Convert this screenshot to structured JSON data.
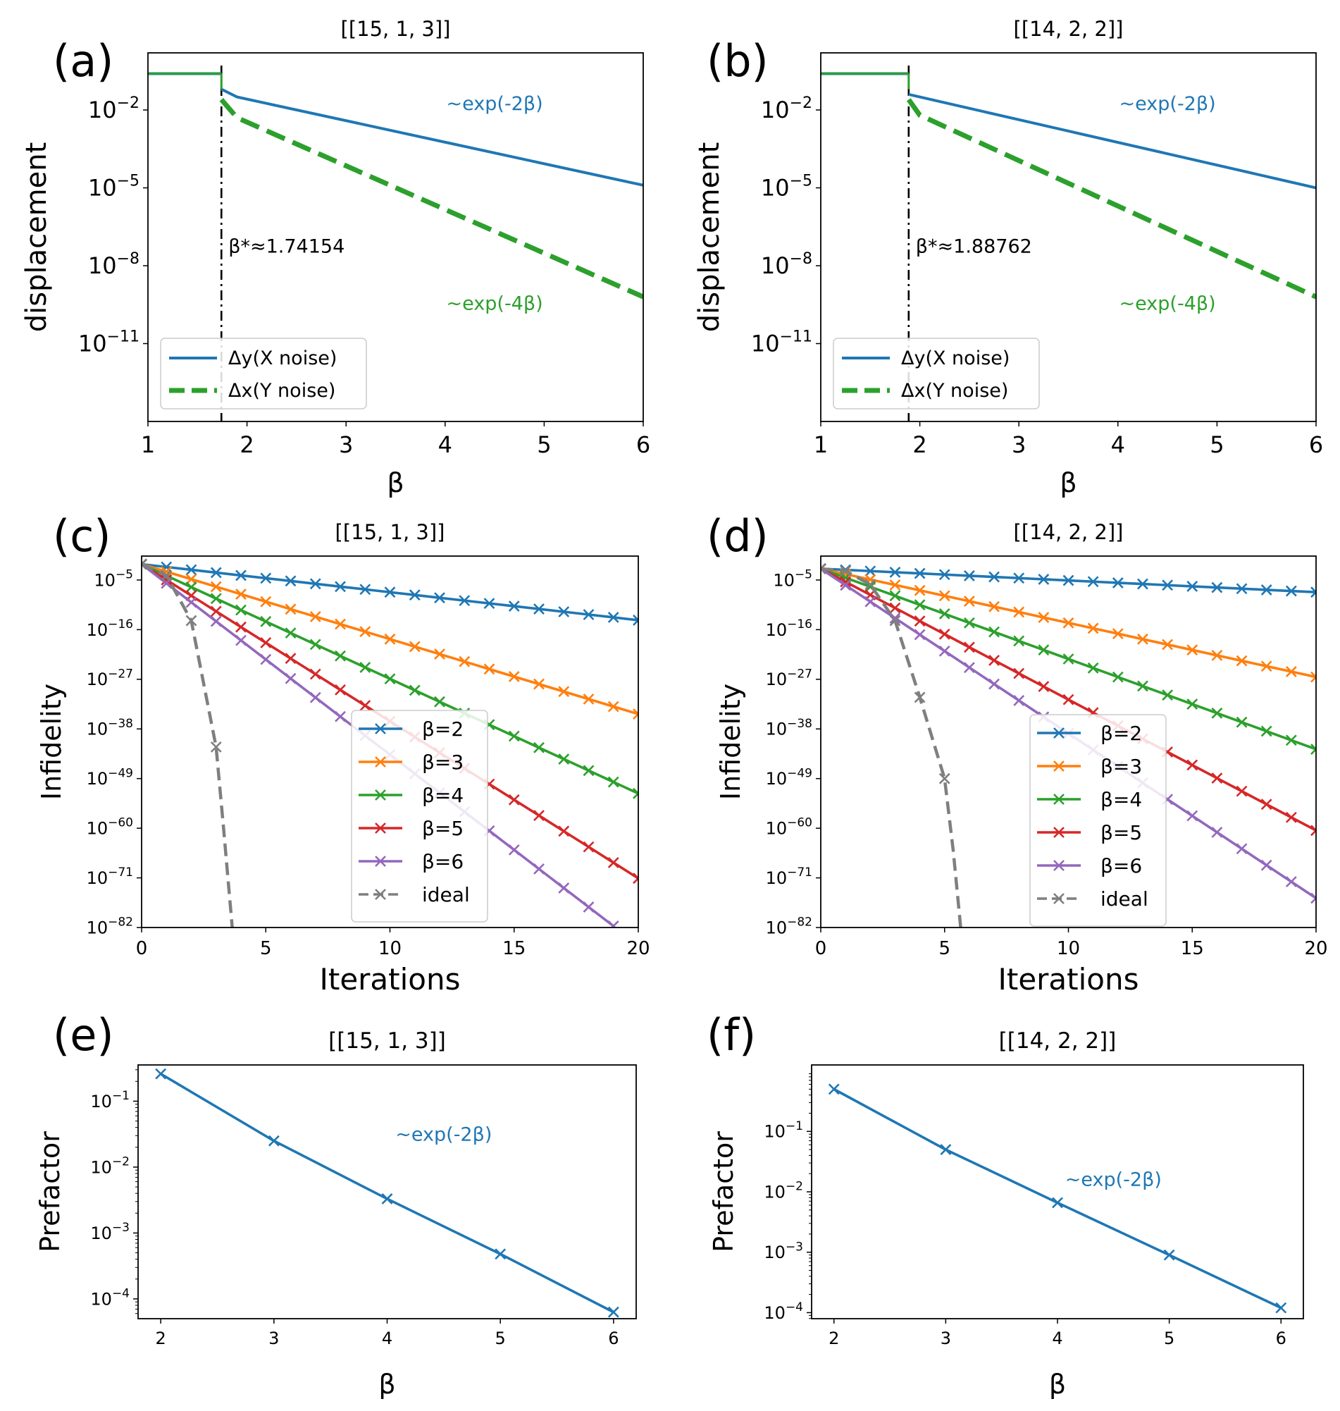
{
  "colors": {
    "beta2": "#1f77b4",
    "beta3": "#ff7f0e",
    "beta4": "#2ca02c",
    "beta5": "#d62728",
    "beta6": "#9467bd",
    "ideal": "#7f7f7f",
    "dy": "#1f77b4",
    "dx": "#2ca02c",
    "threshold": "#000000"
  },
  "chart_data": [
    {
      "panel": "(a)",
      "type": "line",
      "title": "[[15, 1, 3]]",
      "xlabel": "β",
      "ylabel": "displacement",
      "yscale": "log",
      "xlim": [
        1,
        6
      ],
      "ylim_log10": [
        -14,
        0.2
      ],
      "xticks": [
        1,
        2,
        3,
        4,
        5,
        6
      ],
      "yticks": [
        {
          "exp": -2,
          "base": "10",
          "sup": "−2"
        },
        {
          "exp": -5,
          "base": "10",
          "sup": "−5"
        },
        {
          "exp": -8,
          "base": "10",
          "sup": "−8"
        },
        {
          "exp": -11,
          "base": "10",
          "sup": "−11"
        }
      ],
      "legend_position": "lower-left",
      "threshold": {
        "x": 1.74154,
        "label": "β*≈1.74154"
      },
      "series": [
        {
          "name": "Δy(X noise)",
          "color_key": "dy",
          "style": "solid",
          "x": [
            1,
            1.74154
          ],
          "log10y": [
            -0.6,
            -0.6
          ],
          "tail": {
            "x": [
              1.74154,
              1.9,
              6
            ],
            "log10y": [
              -1.2,
              -1.5,
              -4.9
            ]
          }
        },
        {
          "name": "Δx(Y noise)",
          "color_key": "dx",
          "style": "dashed",
          "x": [
            1.74154,
            1.9,
            6
          ],
          "log10y": [
            -1.6,
            -2.3,
            -9.2
          ]
        }
      ],
      "annotations": [
        {
          "text": "~exp(-2β)",
          "x": 4.5,
          "log10y": -2,
          "color_key": "dy"
        },
        {
          "text": "~exp(-4β)",
          "x": 4.5,
          "log10y": -9.7,
          "color_key": "dx"
        }
      ]
    },
    {
      "panel": "(b)",
      "type": "line",
      "title": "[[14, 2, 2]]",
      "xlabel": "β",
      "ylabel": "displacement",
      "yscale": "log",
      "xlim": [
        1,
        6
      ],
      "ylim_log10": [
        -14,
        0.2
      ],
      "xticks": [
        1,
        2,
        3,
        4,
        5,
        6
      ],
      "yticks": [
        {
          "exp": -2,
          "base": "10",
          "sup": "−2"
        },
        {
          "exp": -5,
          "base": "10",
          "sup": "−5"
        },
        {
          "exp": -8,
          "base": "10",
          "sup": "−8"
        },
        {
          "exp": -11,
          "base": "10",
          "sup": "−11"
        }
      ],
      "legend_position": "lower-left",
      "threshold": {
        "x": 1.88762,
        "label": "β*≈1.88762"
      },
      "series": [
        {
          "name": "Δy(X noise)",
          "color_key": "dy",
          "style": "solid",
          "x": [
            1,
            1.88762
          ],
          "log10y": [
            -0.6,
            -0.6
          ],
          "tail": {
            "x": [
              1.88762,
              6
            ],
            "log10y": [
              -1.4,
              -5.0
            ]
          }
        },
        {
          "name": "Δx(Y noise)",
          "color_key": "dx",
          "style": "dashed",
          "x": [
            1.88762,
            2.0,
            6
          ],
          "log10y": [
            -1.6,
            -2.2,
            -9.2
          ]
        }
      ],
      "annotations": [
        {
          "text": "~exp(-2β)",
          "x": 4.5,
          "log10y": -2,
          "color_key": "dy"
        },
        {
          "text": "~exp(-4β)",
          "x": 4.5,
          "log10y": -9.7,
          "color_key": "dx"
        }
      ]
    },
    {
      "panel": "(c)",
      "type": "line",
      "title": "[[15, 1, 3]]",
      "xlabel": "Iterations",
      "ylabel": "Infidelity",
      "yscale": "log",
      "xlim": [
        0,
        20
      ],
      "ylim_log10": [
        -82,
        0.3
      ],
      "xticks": [
        0,
        5,
        10,
        15,
        20
      ],
      "yticks": [
        {
          "exp": -5,
          "base": "10",
          "sup": "−5"
        },
        {
          "exp": -16,
          "base": "10",
          "sup": "−16"
        },
        {
          "exp": -27,
          "base": "10",
          "sup": "−27"
        },
        {
          "exp": -38,
          "base": "10",
          "sup": "−38"
        },
        {
          "exp": -49,
          "base": "10",
          "sup": "−49"
        },
        {
          "exp": -60,
          "base": "10",
          "sup": "−60"
        },
        {
          "exp": -71,
          "base": "10",
          "sup": "−71"
        },
        {
          "exp": -82,
          "base": "10",
          "sup": "−82"
        }
      ],
      "legend_position": "lower-center",
      "series": [
        {
          "name": "β=2",
          "color_key": "beta2",
          "start": -1.5,
          "slope": -0.62,
          "points": 21
        },
        {
          "name": "β=3",
          "color_key": "beta3",
          "start": -1.5,
          "slope": -1.66,
          "points": 21
        },
        {
          "name": "β=4",
          "color_key": "beta4",
          "start": -1.5,
          "slope": -2.54,
          "points": 21
        },
        {
          "name": "β=5",
          "color_key": "beta5",
          "start": -1.5,
          "slope": -3.48,
          "points": 21
        },
        {
          "name": "β=6",
          "color_key": "beta6",
          "start": -1.5,
          "slope": -4.22,
          "points": 20
        },
        {
          "name": "ideal",
          "color_key": "ideal",
          "style": "dashed",
          "x": [
            0,
            1,
            2,
            3,
            3.3,
            3.65
          ],
          "log10y": [
            -1.5,
            -4,
            -14,
            -42,
            -60,
            -82
          ],
          "markers_x": [
            0,
            1,
            2,
            3
          ]
        }
      ]
    },
    {
      "panel": "(d)",
      "type": "line",
      "title": "[[14, 2, 2]]",
      "xlabel": "Iterations",
      "ylabel": "Infidelity",
      "yscale": "log",
      "xlim": [
        0,
        20
      ],
      "ylim_log10": [
        -82,
        0.3
      ],
      "xticks": [
        0,
        5,
        10,
        15,
        20
      ],
      "yticks": [
        {
          "exp": -5,
          "base": "10",
          "sup": "−5"
        },
        {
          "exp": -16,
          "base": "10",
          "sup": "−16"
        },
        {
          "exp": -27,
          "base": "10",
          "sup": "−27"
        },
        {
          "exp": -38,
          "base": "10",
          "sup": "−38"
        },
        {
          "exp": -49,
          "base": "10",
          "sup": "−49"
        },
        {
          "exp": -60,
          "base": "10",
          "sup": "−60"
        },
        {
          "exp": -71,
          "base": "10",
          "sup": "−71"
        },
        {
          "exp": -82,
          "base": "10",
          "sup": "−82"
        }
      ],
      "legend_position": "lower-center",
      "series": [
        {
          "name": "β=2",
          "color_key": "beta2",
          "start": -2.5,
          "slope": -0.26,
          "points": 21
        },
        {
          "name": "β=3",
          "color_key": "beta3",
          "start": -2.5,
          "slope": -1.2,
          "points": 21
        },
        {
          "name": "β=4",
          "color_key": "beta4",
          "start": -2.5,
          "slope": -2.0,
          "points": 21
        },
        {
          "name": "β=5",
          "color_key": "beta5",
          "start": -2.5,
          "slope": -2.9,
          "points": 21
        },
        {
          "name": "β=6",
          "color_key": "beta6",
          "start": -2.5,
          "slope": -3.65,
          "points": 21
        },
        {
          "name": "ideal",
          "color_key": "ideal",
          "style": "dashed",
          "x": [
            0,
            1,
            2,
            3,
            4,
            5,
            5.35,
            5.65
          ],
          "log10y": [
            -2.5,
            -3,
            -6,
            -14,
            -31,
            -49,
            -65,
            -82
          ],
          "markers_x": [
            0,
            1,
            2,
            3,
            4,
            5
          ]
        }
      ]
    },
    {
      "panel": "(e)",
      "type": "line",
      "title": "[[15, 1, 3]]",
      "xlabel": "β",
      "ylabel": "Prefactor",
      "yscale": "log",
      "xlim": [
        1.8,
        6.2
      ],
      "ylim_log10": [
        -4.3,
        -0.45
      ],
      "xticks": [
        2,
        3,
        4,
        5,
        6
      ],
      "yticks": [
        {
          "exp": -1,
          "base": "10",
          "sup": "−1"
        },
        {
          "exp": -2,
          "base": "10",
          "sup": "−2"
        },
        {
          "exp": -3,
          "base": "10",
          "sup": "−3"
        },
        {
          "exp": -4,
          "base": "10",
          "sup": "−4"
        }
      ],
      "series": [
        {
          "name": "prefactor",
          "color_key": "beta2",
          "x": [
            2,
            3,
            4,
            5,
            6
          ],
          "values": [
            0.26,
            0.025,
            0.0033,
            0.00048,
            6.3e-05
          ]
        }
      ],
      "annotations": [
        {
          "text": "~exp(-2β)",
          "x": 4.5,
          "log10y": -1.6,
          "color_key": "beta2"
        }
      ]
    },
    {
      "panel": "(f)",
      "type": "line",
      "title": "[[14, 2, 2]]",
      "xlabel": "β",
      "ylabel": "Prefactor",
      "yscale": "log",
      "xlim": [
        1.8,
        6.2
      ],
      "ylim_log10": [
        -4.1,
        0.1
      ],
      "xticks": [
        2,
        3,
        4,
        5,
        6
      ],
      "yticks": [
        {
          "exp": -1,
          "base": "10",
          "sup": "−1"
        },
        {
          "exp": -2,
          "base": "10",
          "sup": "−2"
        },
        {
          "exp": -3,
          "base": "10",
          "sup": "−3"
        },
        {
          "exp": -4,
          "base": "10",
          "sup": "−4"
        }
      ],
      "series": [
        {
          "name": "prefactor",
          "color_key": "beta2",
          "x": [
            2,
            3,
            4,
            5,
            6
          ],
          "values": [
            0.5,
            0.05,
            0.0066,
            0.0009,
            0.00012
          ]
        }
      ],
      "annotations": [
        {
          "text": "~exp(-2β)",
          "x": 4.5,
          "log10y": -1.9,
          "color_key": "beta2"
        }
      ]
    }
  ]
}
